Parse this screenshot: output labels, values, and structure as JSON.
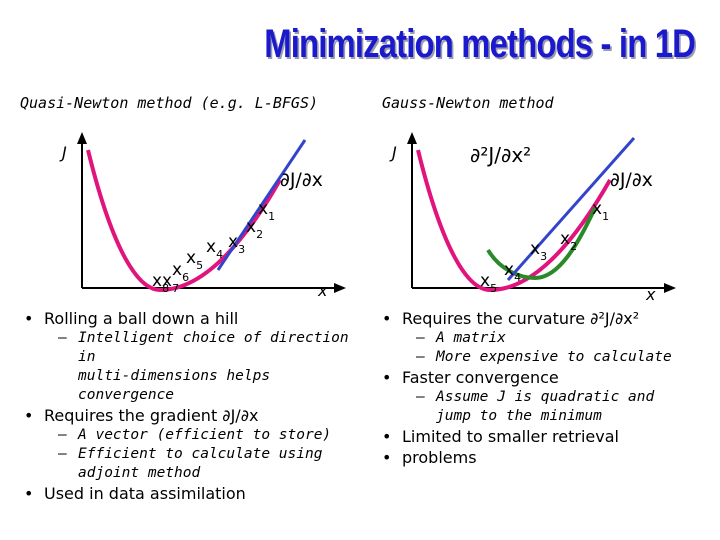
{
  "title": "Minimization methods - in 1D",
  "left": {
    "heading": "Quasi-Newton method (e.g. L-BFGS)",
    "axis_y": "J",
    "axis_x": "x",
    "deriv_label": "∂J/∂x",
    "iterates": [
      "x",
      "x",
      "x",
      "x",
      "x",
      "x",
      "x",
      "x"
    ],
    "subscripts": [
      "1",
      "2",
      "3",
      "4",
      "5",
      "6",
      "7",
      "8"
    ],
    "bullets": [
      {
        "text": "Rolling a ball down a hill",
        "subs": [
          "Intelligent choice of direction in",
          "multi-dimensions helps",
          "convergence"
        ]
      },
      {
        "text": "Requires the gradient ∂J/∂x",
        "subs": [
          "A vector (efficient to store)",
          "Efficient to calculate using",
          "adjoint method"
        ]
      },
      {
        "text": "Used in data assimilation",
        "subs": []
      }
    ]
  },
  "right": {
    "heading": "Gauss-Newton method",
    "axis_y": "J",
    "axis_x": "x",
    "second_deriv_label": "∂²J/∂x²",
    "deriv_label": "∂J/∂x",
    "subscripts": [
      "1",
      "2",
      "3",
      "4",
      "5"
    ],
    "bullets": [
      {
        "text": "Requires the curvature ∂²J/∂x²",
        "subs": [
          "A matrix",
          "More expensive to calculate"
        ]
      },
      {
        "text": "Faster convergence",
        "subs": [
          "Assume J is quadratic and",
          "jump to the minimum"
        ]
      },
      {
        "text": "Limited to smaller retrieval",
        "cont": "problems",
        "subs": []
      }
    ]
  },
  "colors": {
    "title": "#1a1acc",
    "curve": "#e0147c",
    "tangent": "#3344cc",
    "quadratic": "#2a8a2a"
  }
}
